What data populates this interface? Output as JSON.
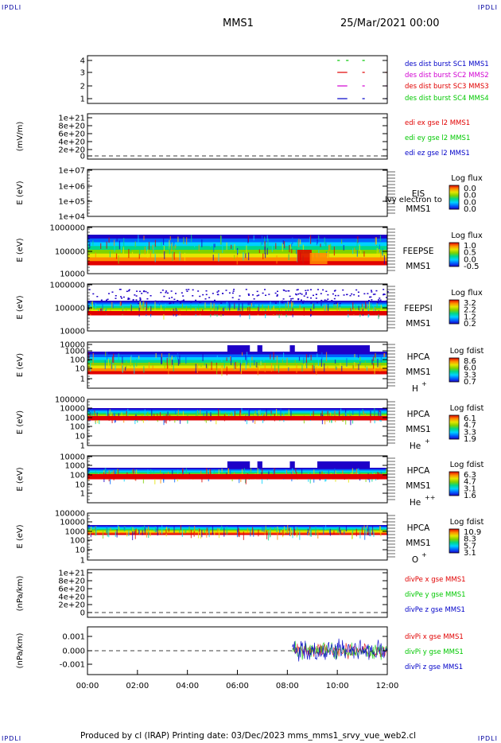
{
  "corners": {
    "tl": "IPDLI",
    "tr": "IPDLI",
    "bl": "IPDLI",
    "br": "IPDLI"
  },
  "header": {
    "mission": "MMS1",
    "date": "25/Mar/2021 00:00"
  },
  "footer": "Produced by cl (IRAP)   Printing date: 03/Dec/2023   mms_mms1_srvy_vue_web2.cl",
  "colors": {
    "spec_cmap": [
      "#1e00c8",
      "#0064ff",
      "#00d2ff",
      "#00d68a",
      "#7fd200",
      "#e6e600",
      "#ff8c00",
      "#e10000"
    ]
  },
  "chart_data": {
    "type": "multi-panel time series",
    "xlim": [
      "00:00",
      "12:00"
    ],
    "x_ticks": [
      "00:00",
      "02:00",
      "04:00",
      "06:00",
      "08:00",
      "10:00",
      "12:00"
    ],
    "panels": [
      {
        "id": "burst",
        "type": "line",
        "y_ticks": [
          "1",
          "2",
          "3",
          "4"
        ],
        "series": [
          {
            "name": "des dist burst SC1 MMS1",
            "color": "#0000c8",
            "level": 1,
            "segments": [
              [
                10.0,
                10.4
              ],
              [
                11.0,
                11.1
              ],
              [
                11.9,
                12.0
              ]
            ]
          },
          {
            "name": "des dist burst SC2 MMS2",
            "color": "#d200d2",
            "level": 2,
            "segments": [
              [
                10.0,
                10.4
              ],
              [
                11.0,
                11.1
              ],
              [
                11.9,
                12.0
              ]
            ]
          },
          {
            "name": "des dist burst SC3 MMS3",
            "color": "#e10000",
            "level": 3,
            "segments": [
              [
                10.0,
                10.4
              ],
              [
                11.0,
                11.1
              ],
              [
                11.9,
                12.0
              ]
            ]
          },
          {
            "name": "des dist burst SC4 MMS4",
            "color": "#00c800",
            "level": 4,
            "segments": [
              [
                10.0,
                10.1
              ],
              [
                10.35,
                10.45
              ],
              [
                11.0,
                11.1
              ]
            ]
          }
        ]
      },
      {
        "id": "edi",
        "type": "line",
        "ylabel": "(mV/m)",
        "y_ticks": [
          "1e+21",
          "8e+20",
          "6e+20",
          "4e+20",
          "2e+20",
          "0"
        ],
        "series": [
          {
            "name": "edi ex gse l2 MMS1",
            "color": "#e10000"
          },
          {
            "name": "edi ey gse l2 MMS1",
            "color": "#00c800"
          },
          {
            "name": "edi ez gse l2 MMS1",
            "color": "#0000c8"
          }
        ]
      },
      {
        "id": "eis",
        "type": "heatmap",
        "ylabel": "E (eV)",
        "y_ticks": [
          "1e+07",
          "1e+06",
          "1e+05",
          "1e+04"
        ],
        "instrument": "EIS",
        "spacecraft": "MMS1",
        "overlap_text": "lvy electron to",
        "colorbar_title": "Log flux",
        "colorbar_ticks": [
          "0.0",
          "0.0",
          "0.0",
          "0.0"
        ]
      },
      {
        "id": "feepse",
        "type": "heatmap",
        "ylabel": "E (eV)",
        "y_ticks": [
          "1000000",
          "100000",
          "10000"
        ],
        "instrument": "FEEPSE",
        "spacecraft": "MMS1",
        "colorbar_title": "Log flux",
        "colorbar_ticks": [
          "1.0",
          "0.5",
          "0.0",
          "-0.5"
        ]
      },
      {
        "id": "feepsi",
        "type": "heatmap",
        "ylabel": "E (eV)",
        "y_ticks": [
          "1000000",
          "100000",
          "10000"
        ],
        "instrument": "FEEPSI",
        "spacecraft": "MMS1",
        "colorbar_title": "Log flux",
        "colorbar_ticks": [
          "3.2",
          "2.2",
          "1.2",
          "0.2"
        ]
      },
      {
        "id": "hpca_h",
        "type": "heatmap",
        "ylabel": "E (eV)",
        "y_ticks": [
          "10000",
          "1000",
          "100",
          "10",
          "1"
        ],
        "instrument": "HPCA",
        "spacecraft": "MMS1",
        "species": "H",
        "charge": "+",
        "colorbar_title": "Log fdist",
        "colorbar_ticks": [
          "8.6",
          "6.0",
          "3.3",
          "0.7"
        ]
      },
      {
        "id": "hpca_he",
        "type": "heatmap",
        "ylabel": "E (eV)",
        "y_ticks": [
          "100000",
          "10000",
          "1000",
          "100",
          "10",
          "1"
        ],
        "instrument": "HPCA",
        "spacecraft": "MMS1",
        "species": "He",
        "charge": "+",
        "colorbar_title": "Log fdist",
        "colorbar_ticks": [
          "6.1",
          "4.7",
          "3.3",
          "1.9"
        ]
      },
      {
        "id": "hpca_hepp",
        "type": "heatmap",
        "ylabel": "E (eV)",
        "y_ticks": [
          "10000",
          "1000",
          "100",
          "10",
          "1"
        ],
        "instrument": "HPCA",
        "spacecraft": "MMS1",
        "species": "He",
        "charge": "++",
        "colorbar_title": "Log fdist",
        "colorbar_ticks": [
          "6.3",
          "4.7",
          "3.1",
          "1.6"
        ]
      },
      {
        "id": "hpca_o",
        "type": "heatmap",
        "ylabel": "E (eV)",
        "y_ticks": [
          "100000",
          "10000",
          "1000",
          "100",
          "10",
          "1"
        ],
        "instrument": "HPCA",
        "spacecraft": "MMS1",
        "species": "O",
        "charge": "+",
        "colorbar_title": "Log fdist",
        "colorbar_ticks": [
          "10.9",
          "8.3",
          "5.7",
          "3.1"
        ]
      },
      {
        "id": "divpe",
        "type": "line",
        "ylabel": "(nPa/km)",
        "y_ticks": [
          "1e+21",
          "8e+20",
          "6e+20",
          "4e+20",
          "2e+20",
          "0"
        ],
        "series": [
          {
            "name": "divPe x gse MMS1",
            "color": "#e10000"
          },
          {
            "name": "divPe y gse MMS1",
            "color": "#00c800"
          },
          {
            "name": "divPe z gse MMS1",
            "color": "#0000c8"
          }
        ]
      },
      {
        "id": "divpi",
        "type": "line",
        "ylabel": "(nPa/km)",
        "y_ticks": [
          "0.001",
          "0.000",
          "-0.001"
        ],
        "ylim": [
          -0.0015,
          0.0015
        ],
        "series": [
          {
            "name": "divPi x gse MMS1",
            "color": "#e10000"
          },
          {
            "name": "divPi y gse MMS1",
            "color": "#00c800"
          },
          {
            "name": "divPi z gse MMS1",
            "color": "#0000c8"
          }
        ]
      }
    ]
  }
}
